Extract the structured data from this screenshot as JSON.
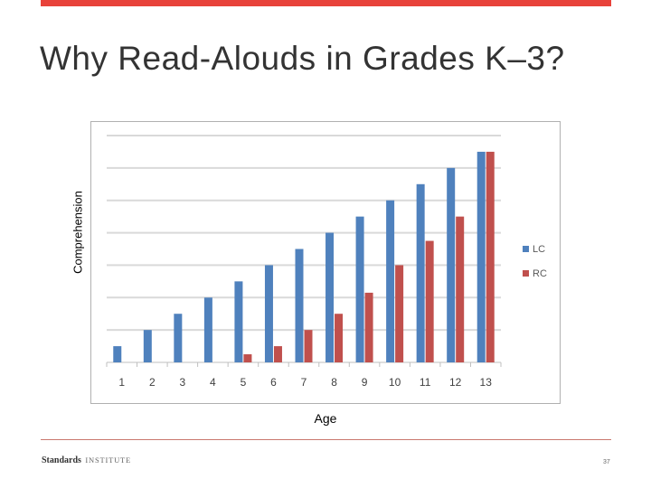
{
  "slide": {
    "title": "Why Read-Alouds in Grades K–3?",
    "brand_strong": "Standards",
    "brand_light": "INSTITUTE",
    "page_number": "37"
  },
  "chart_data": {
    "type": "bar",
    "xlabel": "Age",
    "ylabel": "Comprehension",
    "categories": [
      "1",
      "2",
      "3",
      "4",
      "5",
      "6",
      "7",
      "8",
      "9",
      "10",
      "11",
      "12",
      "13"
    ],
    "series": [
      {
        "name": "LC",
        "color": "#4f81bd",
        "values": [
          1,
          2,
          3,
          4,
          5,
          6,
          7,
          8,
          9,
          10,
          11,
          12,
          13
        ]
      },
      {
        "name": "RC",
        "color": "#c0504d",
        "values": [
          null,
          null,
          null,
          null,
          0.5,
          1,
          2,
          3,
          4.3,
          6,
          7.5,
          9,
          13
        ]
      }
    ],
    "ylim": [
      0,
      14
    ],
    "grid": true,
    "legend": "right"
  }
}
